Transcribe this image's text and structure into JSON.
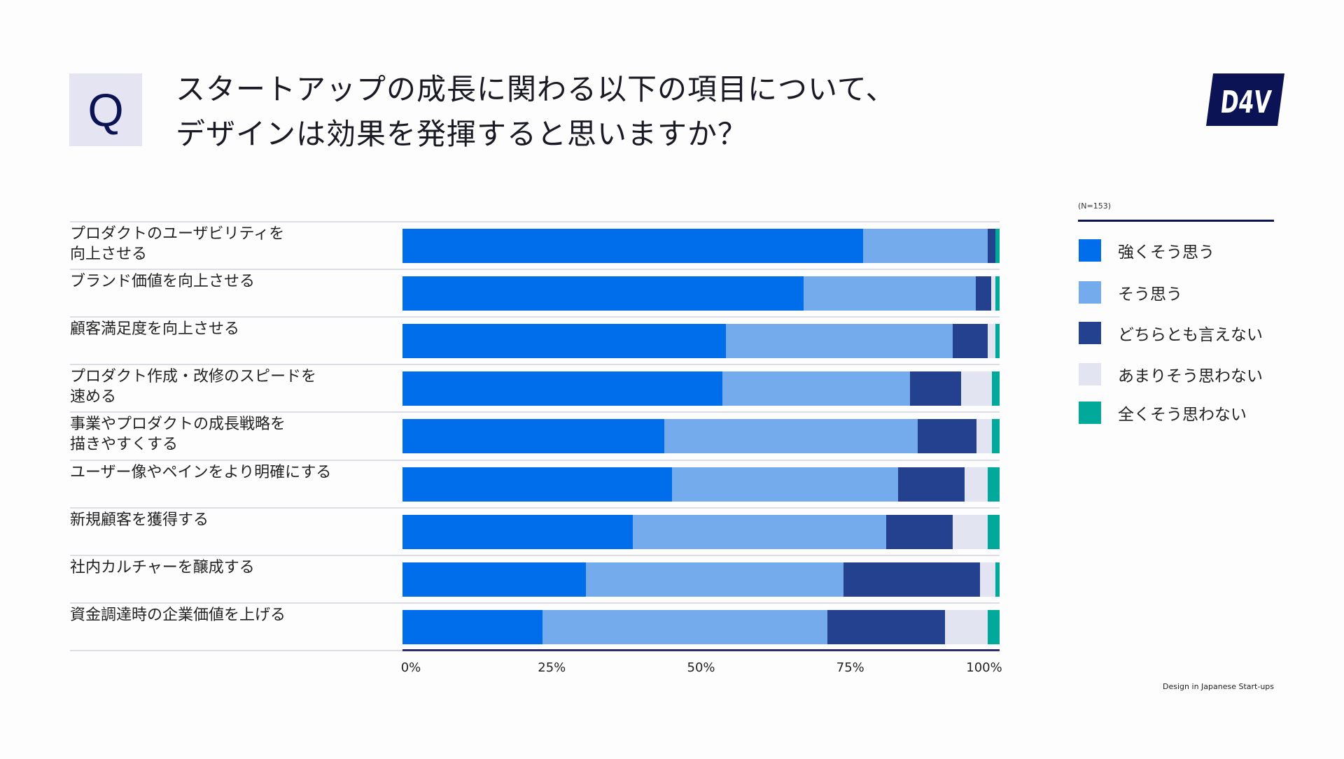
{
  "header": {
    "q_badge": "Q",
    "title_lines": [
      "スタートアップの成長に関わる以下の項目について、",
      "デザインは効果を発揮すると思いますか？"
    ],
    "logo_text": "D4V"
  },
  "footer": "Design in Japanese Start-ups",
  "colors": {
    "brand_navy": "#0b1354"
  },
  "chart_data": {
    "type": "bar",
    "orientation": "horizontal",
    "stacked": "100%",
    "note": "(N=153)",
    "categories": [
      [
        "プロダクトのユーザビリティを",
        "向上させる"
      ],
      [
        "ブランド価値を向上させる"
      ],
      [
        "顧客満足度を向上させる"
      ],
      [
        "プロダクト作成・改修のスピードを",
        "速める"
      ],
      [
        "事業やプロダクトの成長戦略を",
        "描きやすくする"
      ],
      [
        "ユーザー像やペインをより明確にする"
      ],
      [
        "新規顧客を獲得する"
      ],
      [
        "社内カルチャーを醸成する"
      ],
      [
        "資金調達時の企業価値を上げる"
      ]
    ],
    "series": [
      {
        "name": "強くそう思う",
        "color": "#006eeb",
        "values": [
          77.1,
          67.3,
          54.2,
          53.6,
          43.8,
          45.1,
          38.6,
          30.7,
          23.5
        ]
      },
      {
        "name": "そう思う",
        "color": "#73abed",
        "values": [
          20.9,
          28.8,
          37.9,
          31.4,
          42.5,
          37.9,
          42.5,
          43.1,
          47.7
        ]
      },
      {
        "name": "どちらとも言えない",
        "color": "#23418e",
        "values": [
          1.3,
          2.6,
          5.9,
          8.5,
          9.8,
          11.1,
          11.1,
          22.9,
          19.6
        ]
      },
      {
        "name": "あまりそう思わない",
        "color": "#e3e4f2",
        "values": [
          0,
          0.7,
          1.3,
          5.2,
          2.6,
          3.9,
          5.9,
          2.6,
          7.2
        ]
      },
      {
        "name": "全くそう思わない",
        "color": "#00a99a",
        "values": [
          0.7,
          0.7,
          0.7,
          1.3,
          1.3,
          2.0,
          2.0,
          0.7,
          2.0
        ]
      }
    ],
    "xlim": [
      0,
      100
    ],
    "xticks": [
      "0%",
      "25%",
      "50%",
      "75%",
      "100%"
    ],
    "grid": false,
    "legend": "right"
  }
}
